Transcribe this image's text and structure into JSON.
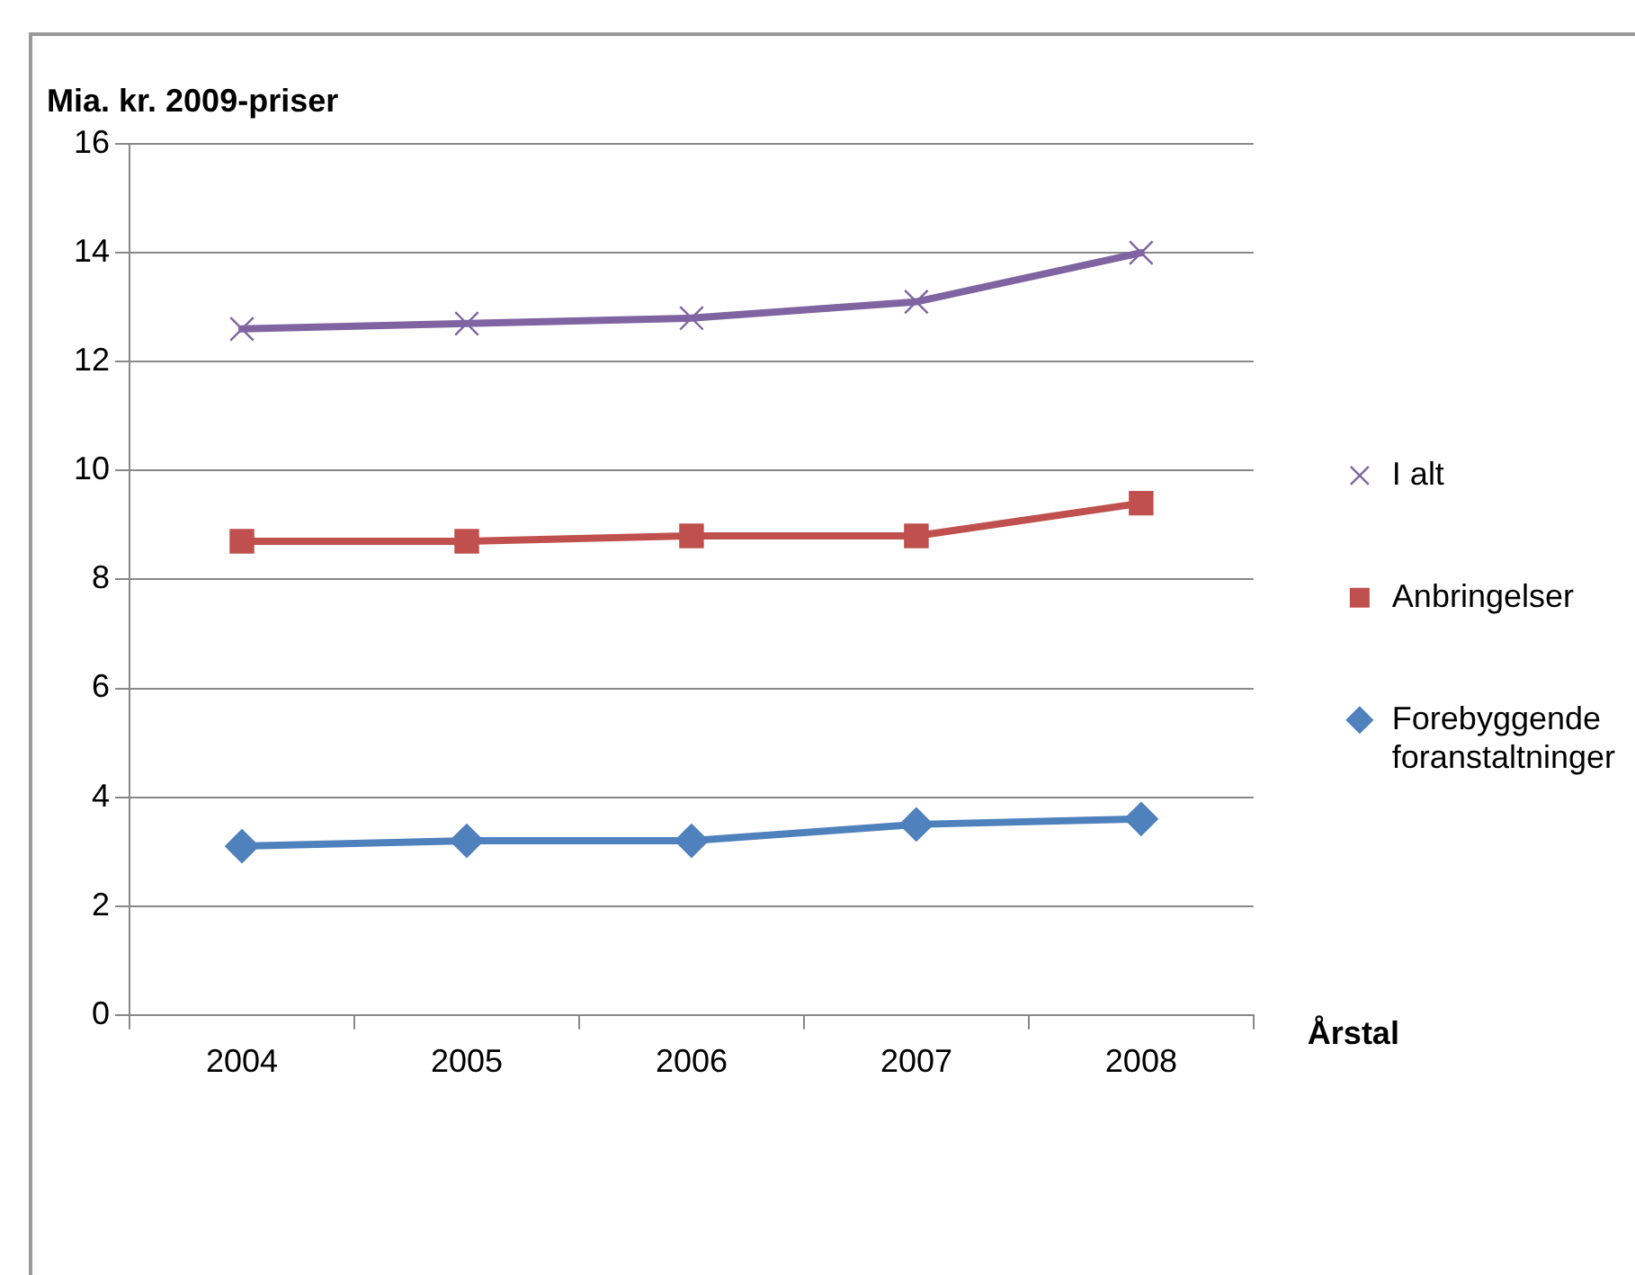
{
  "chart_data": {
    "type": "line",
    "ylabel": "Mia. kr. 2009-priser",
    "xlabel": "Årstal",
    "categories": [
      "2004",
      "2005",
      "2006",
      "2007",
      "2008"
    ],
    "series": [
      {
        "name": "I alt",
        "color": "#8064a2",
        "marker": "cross",
        "values": [
          12.6,
          12.7,
          12.8,
          13.1,
          14.0
        ]
      },
      {
        "name": "Anbringelser",
        "color": "#c0504d",
        "marker": "square",
        "values": [
          8.7,
          8.7,
          8.8,
          8.8,
          9.4
        ]
      },
      {
        "name": "Forebyggende foranstaltninger",
        "color": "#4f81bd",
        "marker": "diamond",
        "values": [
          3.1,
          3.2,
          3.2,
          3.5,
          3.6
        ]
      }
    ],
    "ylim": [
      0,
      16
    ],
    "yticks": [
      0,
      2,
      4,
      6,
      8,
      10,
      12,
      14,
      16
    ],
    "grid": "y",
    "legend": "right",
    "line_style": "solid"
  }
}
